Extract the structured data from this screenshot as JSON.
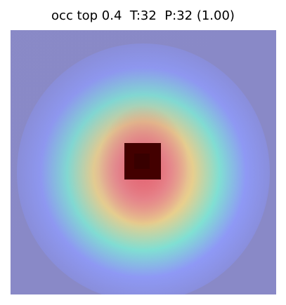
{
  "title": "occ top 0.4  T:32  P:32 (1.00)",
  "chart_data": {
    "type": "heatmap",
    "title": "occ top 0.4  T:32  P:32 (1.00)",
    "colormap": "jet overlay on gray background",
    "occluded_region": "dark square near center",
    "colors": {
      "background": "#8a8ac6",
      "hot": "#ff6f6f",
      "warm": "#ffe27a",
      "mid": "#79f7d3",
      "cool": "#7b7bff",
      "occlusion": "#420000"
    }
  }
}
